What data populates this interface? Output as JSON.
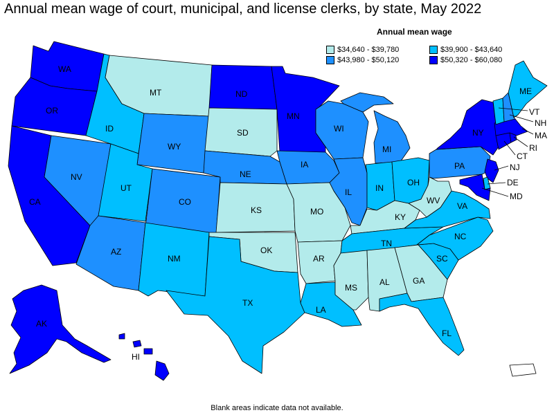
{
  "title": "Annual mean wage of court, municipal, and license clerks, by state, May 2022",
  "legend": {
    "title": "Annual mean wage",
    "ranges": [
      {
        "label": "$34,640 - $39,780",
        "color": "#b3ebeb"
      },
      {
        "label": "$39,900 - $43,640",
        "color": "#00bfff"
      },
      {
        "label": "$43,980 - $50,120",
        "color": "#1e90ff"
      },
      {
        "label": "$50,320 - $60,080",
        "color": "#0000ff"
      }
    ]
  },
  "footnote": "Blank areas indicate data not available.",
  "states": {
    "WA": {
      "label": "WA",
      "bin": 3
    },
    "OR": {
      "label": "OR",
      "bin": 3
    },
    "CA": {
      "label": "CA",
      "bin": 3
    },
    "NV": {
      "label": "NV",
      "bin": 2
    },
    "ID": {
      "label": "ID",
      "bin": 1
    },
    "MT": {
      "label": "MT",
      "bin": 0
    },
    "WY": {
      "label": "WY",
      "bin": 2
    },
    "UT": {
      "label": "UT",
      "bin": 1
    },
    "AZ": {
      "label": "AZ",
      "bin": 2
    },
    "CO": {
      "label": "CO",
      "bin": 2
    },
    "NM": {
      "label": "NM",
      "bin": 1
    },
    "ND": {
      "label": "ND",
      "bin": 3
    },
    "SD": {
      "label": "SD",
      "bin": 0
    },
    "NE": {
      "label": "NE",
      "bin": 2
    },
    "KS": {
      "label": "KS",
      "bin": 0
    },
    "OK": {
      "label": "OK",
      "bin": 0
    },
    "TX": {
      "label": "TX",
      "bin": 1
    },
    "MN": {
      "label": "MN",
      "bin": 3
    },
    "IA": {
      "label": "IA",
      "bin": 2
    },
    "MO": {
      "label": "MO",
      "bin": 0
    },
    "AR": {
      "label": "AR",
      "bin": 0
    },
    "LA": {
      "label": "LA",
      "bin": 1
    },
    "WI": {
      "label": "WI",
      "bin": 2
    },
    "IL": {
      "label": "IL",
      "bin": 2
    },
    "MI": {
      "label": "MI",
      "bin": 2
    },
    "IN": {
      "label": "IN",
      "bin": 1
    },
    "OH": {
      "label": "OH",
      "bin": 1
    },
    "KY": {
      "label": "KY",
      "bin": 0
    },
    "TN": {
      "label": "TN",
      "bin": 1
    },
    "MS": {
      "label": "MS",
      "bin": 0
    },
    "AL": {
      "label": "AL",
      "bin": 0
    },
    "GA": {
      "label": "GA",
      "bin": 0
    },
    "FL": {
      "label": "FL",
      "bin": 1
    },
    "SC": {
      "label": "SC",
      "bin": 1
    },
    "NC": {
      "label": "NC",
      "bin": 1
    },
    "VA": {
      "label": "VA",
      "bin": 1
    },
    "WV": {
      "label": "WV",
      "bin": 0
    },
    "PA": {
      "label": "PA",
      "bin": 2
    },
    "NY": {
      "label": "NY",
      "bin": 3
    },
    "VT": {
      "label": "VT",
      "bin": 1
    },
    "NH": {
      "label": "NH",
      "bin": 2
    },
    "ME": {
      "label": "ME",
      "bin": 1
    },
    "MA": {
      "label": "MA",
      "bin": 3
    },
    "RI": {
      "label": "RI",
      "bin": 3
    },
    "CT": {
      "label": "CT",
      "bin": 3
    },
    "NJ": {
      "label": "NJ",
      "bin": 3
    },
    "DE": {
      "label": "DE",
      "bin": 1
    },
    "MD": {
      "label": "MD",
      "bin": 3
    },
    "AK": {
      "label": "AK",
      "bin": 3
    },
    "HI": {
      "label": "HI",
      "bin": 3
    },
    "PR": {
      "label": "",
      "bin": -1
    }
  }
}
